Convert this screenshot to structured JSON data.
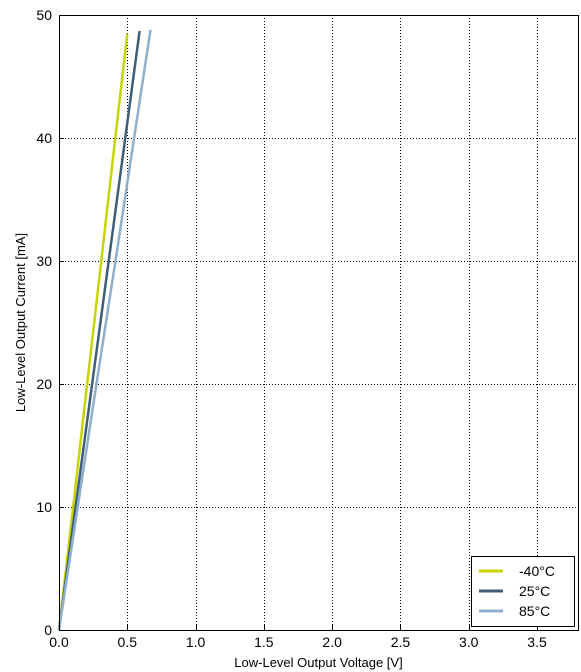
{
  "chart_data": {
    "type": "line",
    "title": "",
    "xlabel": "Low-Level Output Voltage [V]",
    "ylabel": "Low-Level Output Current [mA]",
    "xlim": [
      0,
      3.8
    ],
    "ylim": [
      0,
      50
    ],
    "xticks": [
      0,
      0.5,
      1,
      1.5,
      2,
      2.5,
      3,
      3.5
    ],
    "xtick_labels": [
      "0.0",
      "0.5",
      "1.0",
      "1.5",
      "2.0",
      "2.5",
      "3.0",
      "3.5"
    ],
    "yticks": [
      0,
      10,
      20,
      30,
      40,
      50
    ],
    "ytick_labels": [
      "0",
      "10",
      "20",
      "30",
      "40",
      "50"
    ],
    "grid": true,
    "grid_style": "dotted",
    "legend_position": "bottom-right",
    "series": [
      {
        "name": "-40°C",
        "color": "#c8d400",
        "x": [
          0,
          0.1,
          0.2,
          0.3,
          0.4,
          0.5
        ],
        "y": [
          0,
          9.7,
          19.4,
          29.1,
          38.8,
          48.5
        ]
      },
      {
        "name": "25°C",
        "color": "#3f5f78",
        "x": [
          0,
          0.12,
          0.24,
          0.36,
          0.48,
          0.59
        ],
        "y": [
          0,
          9.9,
          19.8,
          29.7,
          39.6,
          48.7
        ]
      },
      {
        "name": "85°C",
        "color": "#8fb0cc",
        "x": [
          0,
          0.14,
          0.28,
          0.42,
          0.55,
          0.67
        ],
        "y": [
          0,
          10.2,
          20.4,
          30.5,
          40.0,
          48.8
        ]
      }
    ]
  }
}
